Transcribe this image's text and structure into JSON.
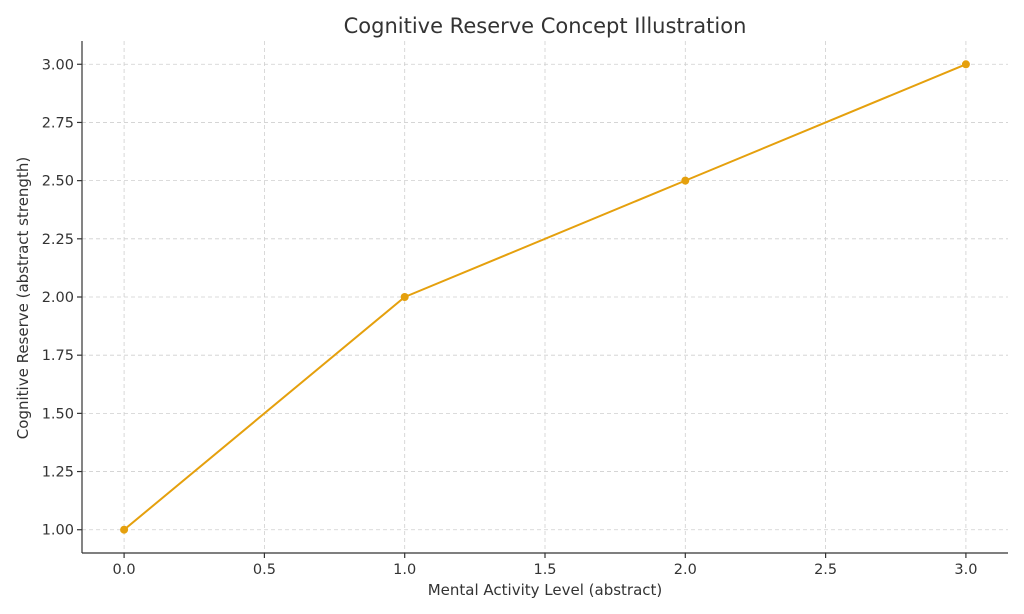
{
  "chart_data": {
    "type": "line",
    "title": "Cognitive Reserve Concept Illustration",
    "xlabel": "Mental Activity Level (abstract)",
    "ylabel": "Cognitive Reserve (abstract strength)",
    "xlim": [
      -0.15,
      3.15
    ],
    "ylim": [
      0.9,
      3.1
    ],
    "xticks": [
      0.0,
      0.5,
      1.0,
      1.5,
      2.0,
      2.5,
      3.0
    ],
    "xtick_labels": [
      "0.0",
      "0.5",
      "1.0",
      "1.5",
      "2.0",
      "2.5",
      "3.0"
    ],
    "yticks": [
      1.0,
      1.25,
      1.5,
      1.75,
      2.0,
      2.25,
      2.5,
      2.75,
      3.0
    ],
    "ytick_labels": [
      "1.00",
      "1.25",
      "1.50",
      "1.75",
      "2.00",
      "2.25",
      "2.50",
      "2.75",
      "3.00"
    ],
    "grid": true,
    "series": [
      {
        "x": [
          0,
          1,
          2,
          3
        ],
        "values": [
          1.0,
          2.0,
          2.5,
          3.0
        ],
        "color": "#E5A00D",
        "marker": "circle"
      }
    ]
  }
}
